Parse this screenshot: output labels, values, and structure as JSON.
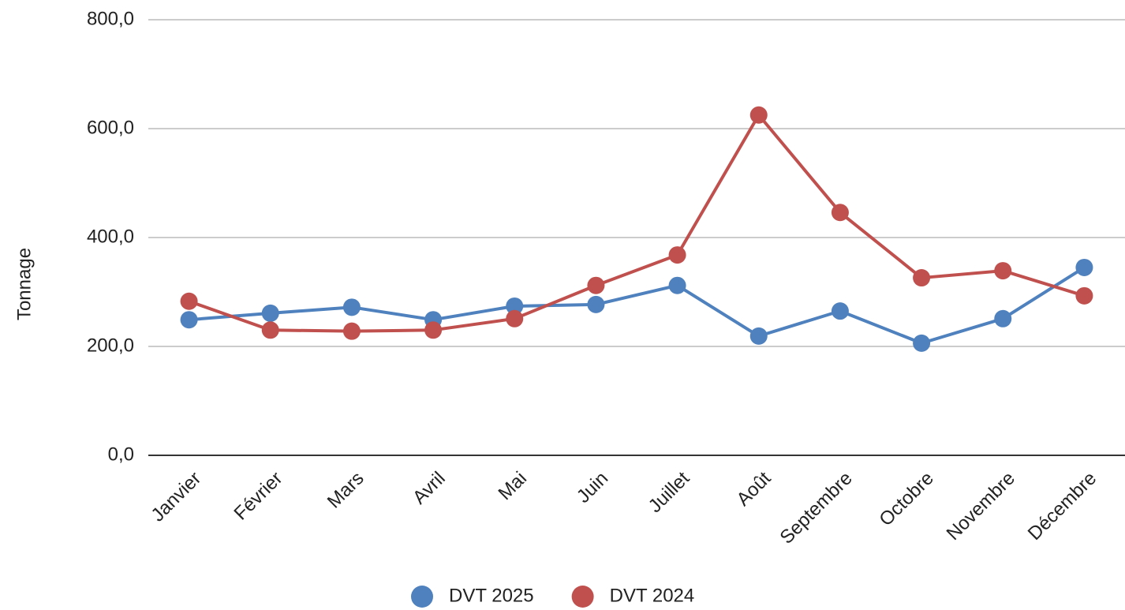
{
  "chart_data": {
    "type": "line",
    "y_label": "Tonnage",
    "categories": [
      "Janvier",
      "Février",
      "Mars",
      "Avril",
      "Mai",
      "Juin",
      "Juillet",
      "Août",
      "Septembre",
      "Octobre",
      "Novembre",
      "Décembre"
    ],
    "series": [
      {
        "name": "DVT 2025",
        "color": "#4e81bd",
        "values": [
          249,
          261,
          272,
          249,
          274,
          277,
          312,
          219,
          265,
          206,
          251,
          345
        ]
      },
      {
        "name": "DVT 2024",
        "color": "#c0504d",
        "values": [
          283,
          230,
          228,
          230,
          251,
          312,
          368,
          625,
          446,
          326,
          339,
          293
        ]
      }
    ],
    "ylim": [
      0,
      800
    ],
    "yticks": [
      {
        "value": 0,
        "label": "0,0"
      },
      {
        "value": 200,
        "label": "200,0"
      },
      {
        "value": 400,
        "label": "400,0"
      },
      {
        "value": 600,
        "label": "600,0"
      },
      {
        "value": 800,
        "label": "800,0"
      }
    ],
    "grid": true,
    "legend": "bottom"
  }
}
